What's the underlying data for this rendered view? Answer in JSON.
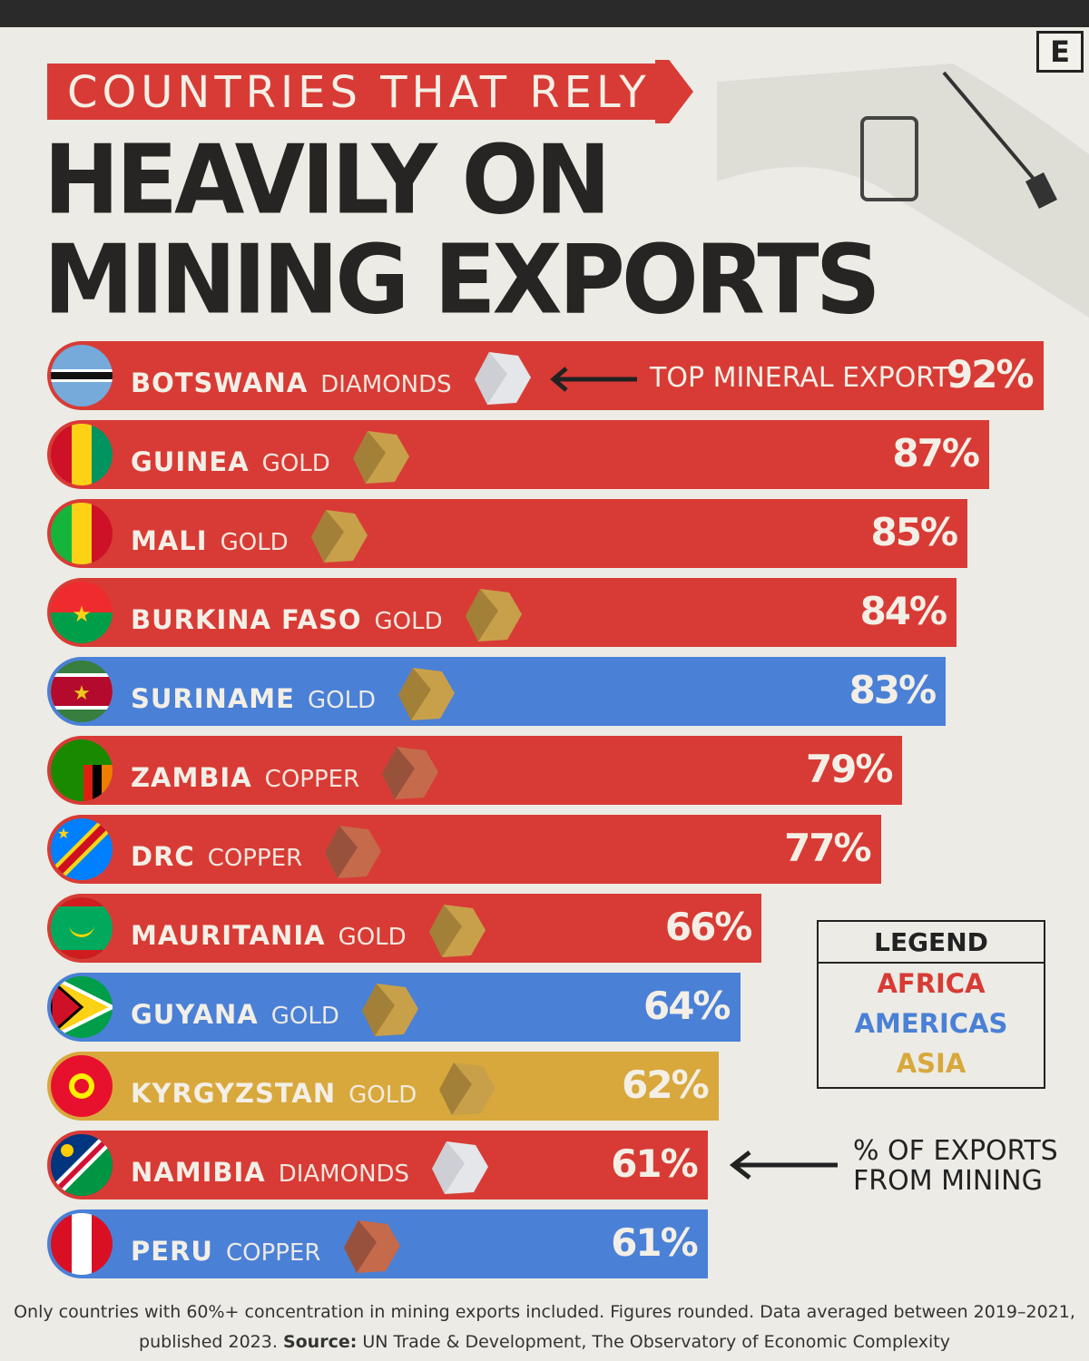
{
  "brand_logo": "E",
  "title": {
    "line1": "COUNTRIES THAT RELY",
    "line2": "HEAVILY ON",
    "line3": "MINING EXPORTS"
  },
  "annotation_top": "TOP MINERAL EXPORT",
  "annotation_side": {
    "line1": "% OF EXPORTS",
    "line2": "FROM MINING"
  },
  "legend": {
    "title": "LEGEND",
    "items": [
      {
        "label": "AFRICA",
        "color": "#d83b35"
      },
      {
        "label": "AMERICAS",
        "color": "#4a80d6"
      },
      {
        "label": "ASIA",
        "color": "#d8a83c"
      }
    ]
  },
  "footer": {
    "line1": "Only countries with 60%+ concentration in mining exports included. Figures rounded. Data averaged between 2019–2021,",
    "line2_pre": "published 2023.",
    "source_label": "Source:",
    "source_text": "UN Trade & Development, The Observatory of Economic Complexity"
  },
  "chart_data": {
    "type": "bar",
    "title": "Countries That Rely Heavily on Mining Exports",
    "xlabel": "% of exports from mining",
    "xlim": [
      0,
      100
    ],
    "categories": [
      "BOTSWANA",
      "GUINEA",
      "MALI",
      "BURKINA FASO",
      "SURINAME",
      "ZAMBIA",
      "DRC",
      "MAURITANIA",
      "GUYANA",
      "KYRGYZSTAN",
      "NAMIBIA",
      "PERU"
    ],
    "values": [
      92,
      87,
      85,
      84,
      83,
      79,
      77,
      66,
      64,
      62,
      61,
      61
    ],
    "labels": [
      "92%",
      "87%",
      "85%",
      "84%",
      "83%",
      "79%",
      "77%",
      "66%",
      "64%",
      "62%",
      "61%",
      "61%"
    ],
    "minerals": [
      "DIAMONDS",
      "GOLD",
      "GOLD",
      "GOLD",
      "GOLD",
      "COPPER",
      "COPPER",
      "GOLD",
      "GOLD",
      "GOLD",
      "DIAMONDS",
      "COPPER"
    ],
    "regions": [
      "AFRICA",
      "AFRICA",
      "AFRICA",
      "AFRICA",
      "AMERICAS",
      "AFRICA",
      "AFRICA",
      "AFRICA",
      "AMERICAS",
      "ASIA",
      "AFRICA",
      "AMERICAS"
    ]
  }
}
